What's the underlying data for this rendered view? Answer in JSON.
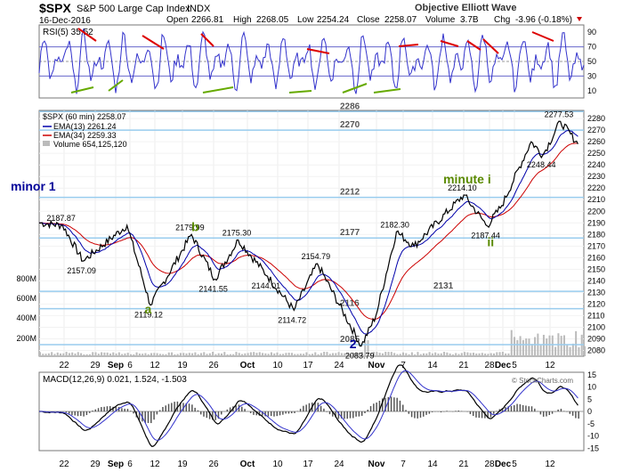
{
  "header": {
    "symbol": "$SPX",
    "name": "S&P 500 Large Cap Index",
    "exchange": "INDX",
    "date": "16-Dec-2016",
    "open_label": "Open",
    "open": "2266.81",
    "high_label": "High",
    "high": "2268.05",
    "low_label": "Low",
    "low": "2254.24",
    "close_label": "Close",
    "close": "2258.07",
    "volume_label": "Volume",
    "volume": "3.7B",
    "chg_label": "Chg",
    "chg": "-3.96 (-0.18%)",
    "watermark": "Objective Elliott Wave",
    "copyright": "© StockCharts.com"
  },
  "colors": {
    "price": "#000000",
    "ema13": "#0000aa",
    "ema34": "#cc0000",
    "volume": "#bbbbbb",
    "rsi": "#3333cc",
    "fib_line": "#99ccee",
    "wave_label": "#5a8a00",
    "wave_major": "#000099",
    "macd_hist": "#555555",
    "trend_red": "#dd0000",
    "trend_green": "#66aa00"
  },
  "rsi_panel": {
    "label": "RSI(5) 35.52",
    "ticks": [
      "90",
      "70",
      "50",
      "30",
      "10"
    ]
  },
  "price_panel": {
    "legend_title": "$SPX (60 min) 2258.07",
    "legend_ema13": "EMA(13) 2261.24",
    "legend_ema34": "EMA(34) 2259.33",
    "legend_volume": "Volume 654,125,120",
    "volume_ticks": [
      "800M",
      "600M",
      "400M",
      "200M"
    ],
    "level_labels": [
      "2286",
      "2270",
      "2212",
      "2177",
      "2131",
      "2116",
      "2085"
    ]
  },
  "macd_panel": {
    "label": "MACD(12,26,9) 0.021, 1.524, -1.503",
    "ticks": [
      "15",
      "10",
      "5",
      "0",
      "-5",
      "-10",
      "-15"
    ]
  },
  "x_axis": {
    "labels": [
      "22",
      "29",
      "Sep",
      "6",
      "12",
      "19",
      "26",
      "Oct",
      "10",
      "17",
      "24",
      "Nov",
      "7",
      "14",
      "21",
      "28",
      "Dec",
      "5",
      "12"
    ]
  },
  "chart_data": {
    "type": "line",
    "title": "$SPX (60 min) 2258.07",
    "y_ticks": [
      2280,
      2270,
      2260,
      2250,
      2240,
      2230,
      2220,
      2210,
      2200,
      2190,
      2180,
      2170,
      2160,
      2150,
      2140,
      2130,
      2120,
      2110,
      2100,
      2090,
      2080
    ],
    "ylim": [
      2075,
      2287
    ],
    "horizontal_levels": [
      2286,
      2270,
      2212,
      2177,
      2131,
      2116,
      2085
    ],
    "pivots": [
      {
        "t": 0,
        "v": 2190
      },
      {
        "t": 8,
        "v": 2187.87
      },
      {
        "t": 15,
        "v": 2157.09
      },
      {
        "t": 30,
        "v": 2187.87
      },
      {
        "t": 38,
        "v": 2119.12
      },
      {
        "t": 52,
        "v": 2179.99
      },
      {
        "t": 60,
        "v": 2141.55
      },
      {
        "t": 68,
        "v": 2175.3
      },
      {
        "t": 78,
        "v": 2144.01
      },
      {
        "t": 87,
        "v": 2114.72
      },
      {
        "t": 95,
        "v": 2154.79
      },
      {
        "t": 110,
        "v": 2083.79
      },
      {
        "t": 115,
        "v": 2110
      },
      {
        "t": 122,
        "v": 2182.3
      },
      {
        "t": 128,
        "v": 2170
      },
      {
        "t": 145,
        "v": 2214.1
      },
      {
        "t": 153,
        "v": 2187.44
      },
      {
        "t": 158,
        "v": 2205
      },
      {
        "t": 168,
        "v": 2260
      },
      {
        "t": 172,
        "v": 2248.44
      },
      {
        "t": 178,
        "v": 2277.53
      },
      {
        "t": 184,
        "v": 2258.07
      }
    ],
    "annotations": [
      {
        "text": "2187.87",
        "t": 8,
        "v": 2187.87
      },
      {
        "text": "2157.09",
        "t": 15,
        "v": 2157.09
      },
      {
        "text": "2119.12",
        "t": 38,
        "v": 2119.12
      },
      {
        "text": "2179.99",
        "t": 52,
        "v": 2179.99
      },
      {
        "text": "2141.55",
        "t": 60,
        "v": 2141.55
      },
      {
        "text": "2175.30",
        "t": 68,
        "v": 2175.3
      },
      {
        "text": "2144.01",
        "t": 78,
        "v": 2144.01
      },
      {
        "text": "2114.72",
        "t": 87,
        "v": 2114.72
      },
      {
        "text": "2154.79",
        "t": 95,
        "v": 2154.79
      },
      {
        "text": "2083.79",
        "t": 110,
        "v": 2083.79
      },
      {
        "text": "2182.30",
        "t": 122,
        "v": 2182.3
      },
      {
        "text": "2214.10",
        "t": 145,
        "v": 2214.1
      },
      {
        "text": "2187.44",
        "t": 153,
        "v": 2187.44
      },
      {
        "text": "2248.44",
        "t": 172,
        "v": 2248.44
      },
      {
        "text": "2277.53",
        "t": 178,
        "v": 2277.53
      }
    ],
    "wave_labels": [
      {
        "text": "a",
        "t": 36,
        "v": 2112,
        "kind": "minor"
      },
      {
        "text": "b",
        "t": 52,
        "v": 2183,
        "kind": "minor"
      },
      {
        "text": "2",
        "t": 106,
        "v": 2082,
        "kind": "major"
      },
      {
        "text": "minute i",
        "t": 138,
        "v": 2224,
        "kind": "minor"
      },
      {
        "text": "ii",
        "t": 153,
        "v": 2170,
        "kind": "minor"
      },
      {
        "text": "minor 1",
        "t": -2,
        "v": 2218,
        "kind": "major"
      }
    ]
  }
}
